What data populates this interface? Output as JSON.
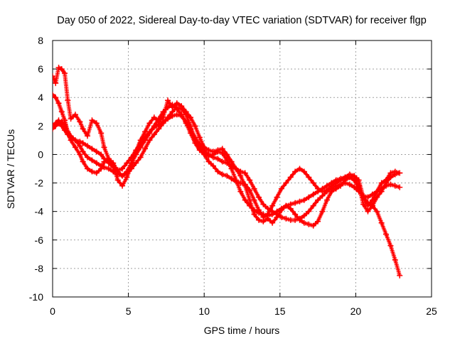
{
  "chart_data": {
    "type": "line",
    "title": "Day 050 of 2022, Sidereal Day-to-day VTEC variation (SDTVAR) for receiver flgp",
    "xlabel": "GPS time / hours",
    "ylabel": "SDTVAR / TECUs",
    "xlim": [
      0,
      25
    ],
    "ylim": [
      -10,
      8
    ],
    "xticks": [
      0,
      5,
      10,
      15,
      20,
      25
    ],
    "yticks": [
      -10,
      -8,
      -6,
      -4,
      -2,
      0,
      2,
      4,
      6,
      8
    ],
    "xtick_labels": [
      "0",
      "5",
      "10",
      "15",
      "20",
      "25"
    ],
    "ytick_labels": [
      "-10",
      "-8",
      "-6",
      "-4",
      "-2",
      "0",
      "2",
      "4",
      "6",
      "8"
    ],
    "grid": true,
    "marker": "+",
    "color": "#ff0000",
    "series": [
      {
        "name": "series-1",
        "x": [
          0.0,
          0.2,
          0.4,
          0.6,
          0.8,
          1.0,
          1.2,
          1.5,
          1.8,
          2.0,
          2.3,
          2.6,
          2.9,
          3.2,
          3.4,
          3.7,
          4.0,
          4.3,
          4.6,
          4.9,
          5.2,
          5.5,
          5.8,
          6.1,
          6.4,
          6.7,
          7.0,
          7.3,
          7.6,
          7.9,
          8.2,
          8.5,
          8.8,
          9.1,
          9.4,
          9.7,
          10.0,
          10.3,
          10.6,
          10.9,
          11.2,
          11.5,
          11.8,
          12.1,
          12.4,
          12.7,
          13.0,
          13.3,
          13.6,
          13.9,
          14.2,
          14.5,
          14.8,
          15.1,
          15.4,
          15.7,
          16.0,
          16.3,
          16.6,
          16.9,
          17.2,
          17.5,
          17.8,
          18.1,
          18.4,
          18.7,
          19.0,
          19.3,
          19.6,
          19.9,
          20.2,
          20.5,
          20.8,
          21.1,
          21.4,
          21.7,
          22.0,
          22.3,
          22.6,
          22.9
        ],
        "y": [
          5.5,
          5.0,
          6.1,
          6.0,
          5.7,
          3.8,
          2.5,
          2.8,
          2.3,
          1.8,
          1.3,
          2.4,
          2.2,
          1.5,
          0.5,
          -0.3,
          -0.8,
          -1.8,
          -2.2,
          -1.6,
          -0.8,
          0.2,
          1.0,
          1.6,
          2.2,
          2.6,
          2.3,
          2.6,
          3.8,
          3.3,
          3.6,
          3.4,
          3.0,
          2.6,
          2.0,
          1.2,
          0.5,
          0.3,
          0.2,
          0.3,
          0.4,
          0.0,
          -0.5,
          -1.0,
          -1.5,
          -2.2,
          -3.2,
          -4.2,
          -4.6,
          -4.7,
          -4.5,
          -4.8,
          -4.4,
          -3.9,
          -3.6,
          -3.8,
          -4.2,
          -4.6,
          -4.8,
          -4.9,
          -5.0,
          -4.7,
          -4.0,
          -3.2,
          -2.6,
          -2.4,
          -2.2,
          -1.8,
          -1.6,
          -1.5,
          -1.8,
          -3.0,
          -3.6,
          -3.2,
          -2.6,
          -2.0,
          -1.8,
          -1.3,
          -1.2,
          -1.3
        ]
      },
      {
        "name": "series-2",
        "x": [
          0.0,
          0.2,
          0.4,
          0.6,
          0.8,
          1.0,
          1.2,
          1.5,
          1.8,
          2.0,
          2.3,
          2.6,
          2.9,
          3.2,
          3.4,
          3.7,
          4.0,
          4.3,
          4.6,
          4.9,
          5.2,
          5.5,
          5.8,
          6.1,
          6.4,
          6.7,
          7.0,
          7.3,
          7.6,
          7.9,
          8.2,
          8.5,
          8.8,
          9.1,
          9.4,
          9.7,
          10.0,
          10.3,
          10.6,
          10.9,
          11.2,
          11.5,
          11.8,
          12.1,
          12.4,
          12.7,
          13.0,
          13.3,
          13.6,
          13.9,
          14.2,
          14.5,
          14.8,
          15.1,
          15.4,
          15.7,
          16.0,
          16.3,
          16.6,
          16.9,
          17.2,
          17.5,
          17.8,
          18.1,
          18.4,
          18.7,
          19.0,
          19.3,
          19.6,
          19.9,
          20.2,
          20.5,
          20.8,
          21.1,
          21.4,
          21.7,
          22.0,
          22.3,
          22.6,
          22.9
        ],
        "y": [
          1.8,
          2.0,
          2.2,
          2.3,
          2.1,
          1.5,
          1.0,
          0.5,
          0.0,
          -0.5,
          -1.0,
          -1.2,
          -1.3,
          -1.0,
          -0.5,
          -0.3,
          -0.6,
          -1.2,
          -1.5,
          -1.2,
          -0.6,
          0.0,
          0.5,
          1.0,
          1.5,
          2.0,
          2.5,
          3.0,
          3.3,
          3.5,
          3.2,
          2.8,
          2.2,
          1.5,
          0.8,
          0.3,
          0.0,
          -0.5,
          -0.8,
          -1.2,
          -1.4,
          -1.5,
          -1.7,
          -1.9,
          -2.0,
          -2.1,
          -2.5,
          -3.2,
          -3.9,
          -4.4,
          -4.2,
          -3.6,
          -3.0,
          -2.4,
          -2.0,
          -1.6,
          -1.2,
          -1.0,
          -1.2,
          -1.6,
          -2.0,
          -2.4,
          -2.6,
          -2.5,
          -2.2,
          -2.0,
          -1.8,
          -1.6,
          -1.4,
          -1.5,
          -2.2,
          -3.5,
          -4.0,
          -3.6,
          -3.0,
          -2.6,
          -2.0,
          -1.6,
          -1.4,
          -1.3
        ]
      },
      {
        "name": "series-3",
        "x": [
          0.0,
          0.2,
          0.4,
          0.6,
          0.8,
          1.0,
          1.2,
          1.5,
          1.8,
          2.0,
          2.3,
          2.6,
          2.9,
          3.2,
          3.4,
          3.7,
          4.0,
          4.3,
          4.6,
          4.9,
          5.2,
          5.5,
          5.8,
          6.1,
          6.4,
          6.7,
          7.0,
          7.3,
          7.6,
          7.9,
          8.2,
          8.5,
          8.8,
          9.1,
          9.4,
          9.7,
          10.0,
          10.3,
          10.6,
          10.9,
          11.2,
          11.5,
          11.8,
          12.1,
          12.4,
          12.7,
          13.0,
          13.3,
          13.6,
          13.9,
          14.2,
          14.5,
          14.8,
          15.1,
          15.4,
          15.7,
          16.0,
          16.3,
          16.6,
          16.9,
          17.2,
          17.5,
          17.8,
          18.1,
          18.4,
          18.7,
          19.0,
          19.3,
          19.6,
          19.9,
          20.2,
          20.5,
          20.8,
          21.1,
          21.4,
          21.7,
          22.0,
          22.3,
          22.6,
          22.9
        ],
        "y": [
          4.2,
          4.0,
          3.6,
          3.0,
          2.4,
          1.6,
          1.3,
          1.0,
          0.6,
          0.2,
          -0.2,
          -0.4,
          -0.6,
          -0.8,
          -0.9,
          -1.0,
          -1.2,
          -1.4,
          -1.5,
          -1.3,
          -1.0,
          -0.6,
          -0.2,
          0.4,
          1.0,
          1.4,
          1.8,
          2.2,
          2.6,
          3.0,
          3.3,
          3.2,
          2.8,
          2.0,
          1.0,
          0.4,
          0.1,
          -0.1,
          0.0,
          0.2,
          0.1,
          -0.4,
          -1.0,
          -1.8,
          -2.6,
          -3.2,
          -3.6,
          -3.9,
          -4.1,
          -4.2,
          -4.3,
          -4.2,
          -4.0,
          -3.8,
          -3.6,
          -3.5,
          -3.4,
          -3.3,
          -3.2,
          -3.0,
          -2.8,
          -2.6,
          -2.4,
          -2.2,
          -2.0,
          -1.8,
          -1.7,
          -1.6,
          -1.6,
          -1.8,
          -2.4,
          -3.0,
          -3.4,
          -3.6,
          -4.0,
          -4.8,
          -5.6,
          -6.4,
          -7.4,
          -8.5
        ]
      },
      {
        "name": "series-4",
        "x": [
          0.0,
          0.2,
          0.4,
          0.6,
          0.8,
          1.0,
          1.2,
          1.5,
          1.8,
          2.0,
          2.3,
          2.6,
          2.9,
          3.2,
          3.4,
          3.7,
          4.0,
          4.3,
          4.6,
          4.9,
          5.2,
          5.5,
          5.8,
          6.1,
          6.4,
          6.7,
          7.0,
          7.3,
          7.6,
          7.9,
          8.2,
          8.5,
          8.8,
          9.1,
          9.4,
          9.7,
          10.0,
          10.3,
          10.6,
          10.9,
          11.2,
          11.5,
          11.8,
          12.1,
          12.4,
          12.7,
          13.0,
          13.3,
          13.6,
          13.9,
          14.2,
          14.5,
          14.8,
          15.1,
          15.4,
          15.7,
          16.0,
          16.3,
          16.6,
          16.9,
          17.2,
          17.5,
          17.8,
          18.1,
          18.4,
          18.7,
          19.0,
          19.3,
          19.6,
          19.9,
          20.2,
          20.5,
          20.8,
          21.1,
          21.4,
          21.7,
          22.0,
          22.3,
          22.6,
          22.9
        ],
        "y": [
          2.0,
          2.2,
          2.4,
          2.0,
          1.7,
          1.4,
          1.2,
          1.0,
          0.9,
          0.8,
          0.6,
          0.4,
          0.2,
          0.0,
          -0.3,
          -0.6,
          -0.9,
          -1.1,
          -1.0,
          -0.6,
          -0.2,
          0.3,
          0.8,
          1.2,
          1.6,
          1.9,
          2.1,
          2.3,
          2.5,
          2.7,
          2.8,
          2.7,
          2.3,
          1.8,
          1.2,
          0.7,
          0.3,
          0.0,
          -0.2,
          -0.3,
          -0.5,
          -0.6,
          -0.8,
          -1.0,
          -1.2,
          -1.3,
          -1.8,
          -2.4,
          -3.0,
          -3.5,
          -3.8,
          -4.0,
          -4.2,
          -4.4,
          -4.5,
          -4.6,
          -4.6,
          -4.5,
          -4.3,
          -4.0,
          -3.6,
          -3.2,
          -2.9,
          -2.6,
          -2.4,
          -2.2,
          -2.1,
          -2.0,
          -2.1,
          -2.3,
          -2.6,
          -2.9,
          -3.0,
          -2.8,
          -2.6,
          -2.4,
          -2.2,
          -2.1,
          -2.2,
          -2.3
        ]
      }
    ]
  }
}
